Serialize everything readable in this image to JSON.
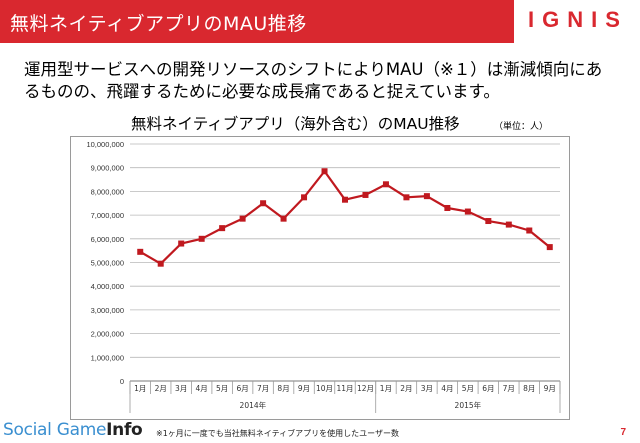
{
  "header": {
    "title": "無料ネイティブアプリのMAU推移",
    "brand": "IGNIS"
  },
  "lead_text": "運用型サービスへの開発リソースのシフトによりMAU（※１）は漸減傾向にあるものの、飛躍するために必要な成長痛であると捉えています。",
  "chart_data": {
    "type": "line",
    "title": "無料ネイティブアプリ（海外含む）のMAU推移",
    "unit_note": "（単位：人）",
    "categories": [
      "1月",
      "2月",
      "3月",
      "4月",
      "5月",
      "6月",
      "7月",
      "8月",
      "9月",
      "10月",
      "11月",
      "12月",
      "1月",
      "2月",
      "3月",
      "4月",
      "5月",
      "6月",
      "7月",
      "8月",
      "9月"
    ],
    "year_groups": [
      {
        "label": "2014年",
        "count": 12
      },
      {
        "label": "2015年",
        "count": 9
      }
    ],
    "series": [
      {
        "values": [
          5450000,
          4950000,
          5800000,
          6000000,
          6450000,
          6850000,
          7500000,
          6850000,
          7750000,
          8850000,
          7650000,
          7850000,
          8300000,
          7750000,
          7800000,
          7300000,
          7150000,
          6750000,
          6600000,
          6350000,
          5650000
        ]
      }
    ],
    "ylim": [
      0,
      10000000
    ],
    "yticks": [
      "0",
      "1,000,000",
      "2,000,000",
      "3,000,000",
      "4,000,000",
      "5,000,000",
      "6,000,000",
      "7,000,000",
      "8,000,000",
      "9,000,000",
      "10,000,000"
    ],
    "grid": true,
    "color": "#c0191f"
  },
  "footer": {
    "logo_main": "Social Game",
    "logo_info": "Info",
    "footnote": "※1ヶ月に一度でも当社無料ネイティブアプリを使用したユーザー数",
    "page_number": "7"
  }
}
